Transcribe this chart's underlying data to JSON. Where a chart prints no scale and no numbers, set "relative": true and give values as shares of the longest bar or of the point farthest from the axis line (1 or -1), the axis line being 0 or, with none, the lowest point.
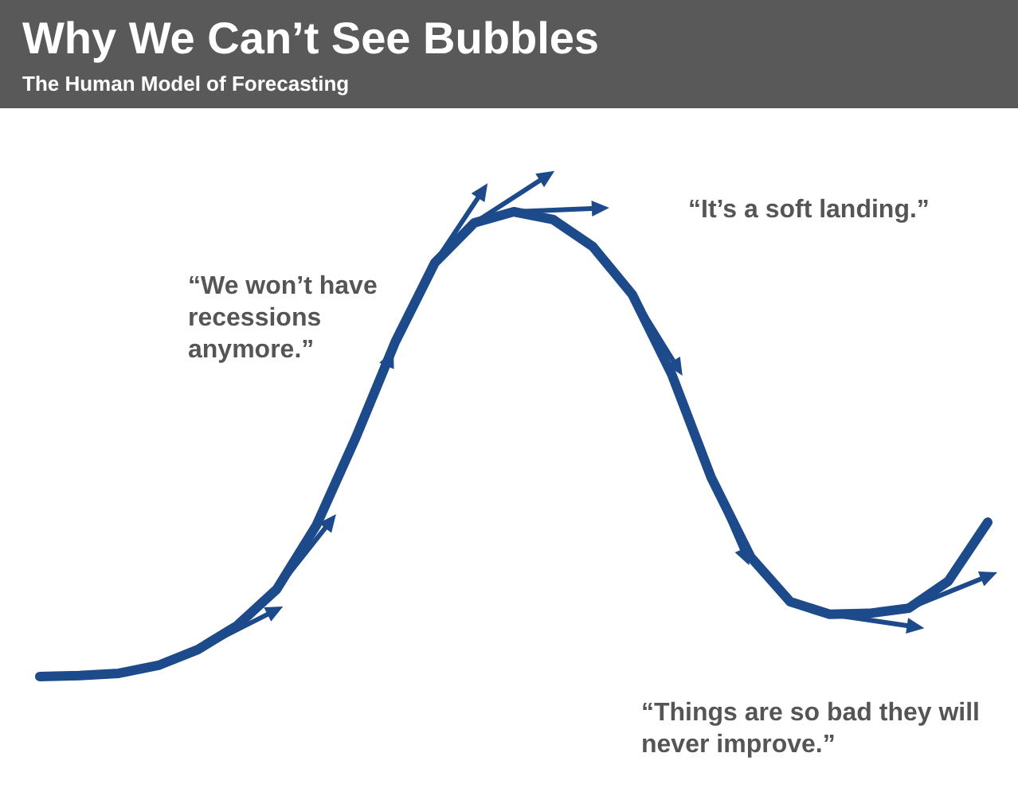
{
  "chart_data": {
    "type": "line",
    "title": "Why We Can’t See Bubbles",
    "subtitle": "The Human Model of Forecasting",
    "relative": true,
    "marker": "none",
    "line_style": "solid",
    "categories": [
      null,
      null,
      null,
      null,
      null,
      null,
      null,
      null,
      null,
      null,
      null,
      null,
      null,
      null,
      null,
      null,
      null,
      null,
      null,
      null,
      null,
      null,
      null,
      null,
      null
    ],
    "series": [
      {
        "color": "#1c4a8a",
        "values": [
          0,
          0.002,
          0.007,
          0.024,
          0.058,
          0.11,
          0.188,
          0.325,
          0.514,
          0.72,
          0.89,
          0.976,
          1,
          0.983,
          0.925,
          0.822,
          0.65,
          0.428,
          0.257,
          0.161,
          0.134,
          0.136,
          0.147,
          0.205,
          0.332
        ]
      }
    ],
    "annotations": [
      "“We won’t have\nrecessions\nanymore.”",
      "“It’s a soft landing.”",
      "“Things are so bad they will\nnever improve.”"
    ]
  }
}
